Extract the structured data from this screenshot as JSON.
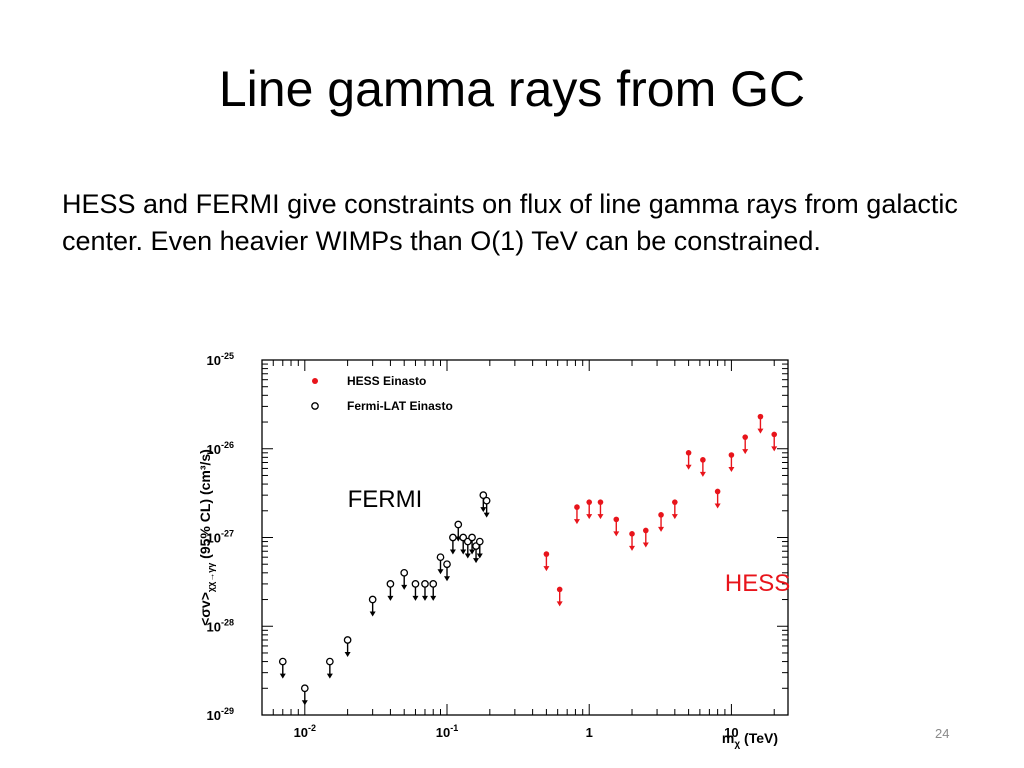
{
  "slide": {
    "title": "Line gamma rays from GC",
    "body": "HESS and FERMI give constraints on flux of line gamma rays from galactic center.  Even heavier WIMPs than O(1) TeV can be constrained.",
    "page_number": "24"
  },
  "chart_data": {
    "type": "scatter",
    "x_scale": "log",
    "y_scale": "log",
    "xlim": [
      0.005,
      25
    ],
    "ylim": [
      1e-29,
      1e-25
    ],
    "xlabel_main": "m",
    "xlabel_sub": "χ",
    "xlabel_unit": " (TeV)",
    "ylabel_main": "<σv>",
    "ylabel_sub": "χχ→γγ",
    "ylabel_rest": " (95% CL) (cm³/s)",
    "x_ticks": [
      {
        "value": 0.01,
        "base": "10",
        "exp": "-2"
      },
      {
        "value": 0.1,
        "base": "10",
        "exp": "-1"
      },
      {
        "value": 1,
        "base": "1",
        "exp": ""
      },
      {
        "value": 10,
        "base": "10",
        "exp": ""
      }
    ],
    "y_ticks": [
      {
        "value": 1e-25,
        "base": "10",
        "exp": "-25"
      },
      {
        "value": 1e-26,
        "base": "10",
        "exp": "-26"
      },
      {
        "value": 1e-27,
        "base": "10",
        "exp": "-27"
      },
      {
        "value": 1e-28,
        "base": "10",
        "exp": "-28"
      },
      {
        "value": 1e-29,
        "base": "10",
        "exp": "-29"
      }
    ],
    "legend": [
      {
        "label": "HESS Einasto",
        "marker": "filled",
        "color": "#e8141b"
      },
      {
        "label": "Fermi-LAT Einasto",
        "marker": "open",
        "color": "#000000"
      }
    ],
    "annotations": [
      {
        "text": "FERMI",
        "x": 0.02,
        "y": 2.2e-27,
        "color": "#000000"
      },
      {
        "text": "HESS",
        "x": 9,
        "y": 2.5e-28,
        "color": "#e8141b"
      }
    ],
    "series": [
      {
        "name": "HESS Einasto",
        "marker": "filled",
        "color": "#e8141b",
        "upper_limit": true,
        "points": [
          [
            0.5,
            6.5e-28
          ],
          [
            0.62,
            2.6e-28
          ],
          [
            0.82,
            2.2e-27
          ],
          [
            1.0,
            2.5e-27
          ],
          [
            1.2,
            2.5e-27
          ],
          [
            1.55,
            1.6e-27
          ],
          [
            2.0,
            1.1e-27
          ],
          [
            2.5,
            1.2e-27
          ],
          [
            3.2,
            1.8e-27
          ],
          [
            4.0,
            2.5e-27
          ],
          [
            5.0,
            9e-27
          ],
          [
            6.3,
            7.5e-27
          ],
          [
            8.0,
            3.3e-27
          ],
          [
            10.0,
            8.5e-27
          ],
          [
            12.5,
            1.35e-26
          ],
          [
            16.0,
            2.3e-26
          ],
          [
            20.0,
            1.45e-26
          ]
        ]
      },
      {
        "name": "Fermi-LAT Einasto",
        "marker": "open",
        "color": "#000000",
        "upper_limit": true,
        "points": [
          [
            0.007,
            4e-29
          ],
          [
            0.01,
            2e-29
          ],
          [
            0.015,
            4e-29
          ],
          [
            0.02,
            7e-29
          ],
          [
            0.03,
            2e-28
          ],
          [
            0.04,
            3e-28
          ],
          [
            0.05,
            4e-28
          ],
          [
            0.06,
            3e-28
          ],
          [
            0.07,
            3e-28
          ],
          [
            0.08,
            3e-28
          ],
          [
            0.09,
            6e-28
          ],
          [
            0.1,
            5e-28
          ],
          [
            0.11,
            1e-27
          ],
          [
            0.12,
            1.4e-27
          ],
          [
            0.13,
            1e-27
          ],
          [
            0.14,
            9e-28
          ],
          [
            0.15,
            1e-27
          ],
          [
            0.16,
            8e-28
          ],
          [
            0.17,
            9e-28
          ],
          [
            0.18,
            3e-27
          ],
          [
            0.19,
            2.6e-27
          ]
        ]
      }
    ]
  }
}
